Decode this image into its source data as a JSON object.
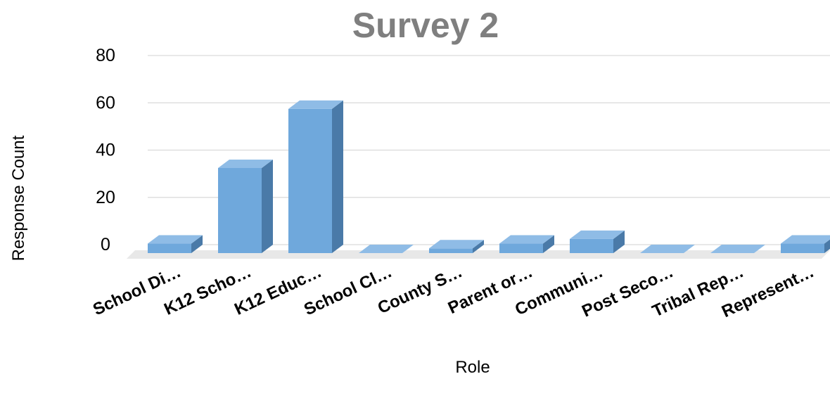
{
  "chart_data": {
    "type": "bar",
    "style": "3d-column",
    "title": "Survey 2",
    "xlabel": "Role",
    "ylabel": "Response Count",
    "categories": [
      "School Di…",
      "K12 Scho…",
      "K12 Educ…",
      "School Cl…",
      "County S…",
      "Parent or…",
      "Communi…",
      "Post Seco…",
      "Tribal Rep…",
      "Represent…"
    ],
    "series": [
      {
        "values": [
          4,
          36,
          61,
          0,
          2,
          4,
          6,
          0,
          0,
          4
        ]
      }
    ],
    "ylim": [
      0,
      80
    ],
    "yticks": [
      0,
      20,
      40,
      60,
      80
    ],
    "grid": true,
    "legend": "none"
  },
  "colors": {
    "bar_front": "#6fa8dc",
    "bar_top": "#8fbce6",
    "bar_side": "#4a7aa8",
    "title": "#7f7f7f",
    "gridline": "#d9d9d9",
    "floor": "#e8e8e8"
  }
}
